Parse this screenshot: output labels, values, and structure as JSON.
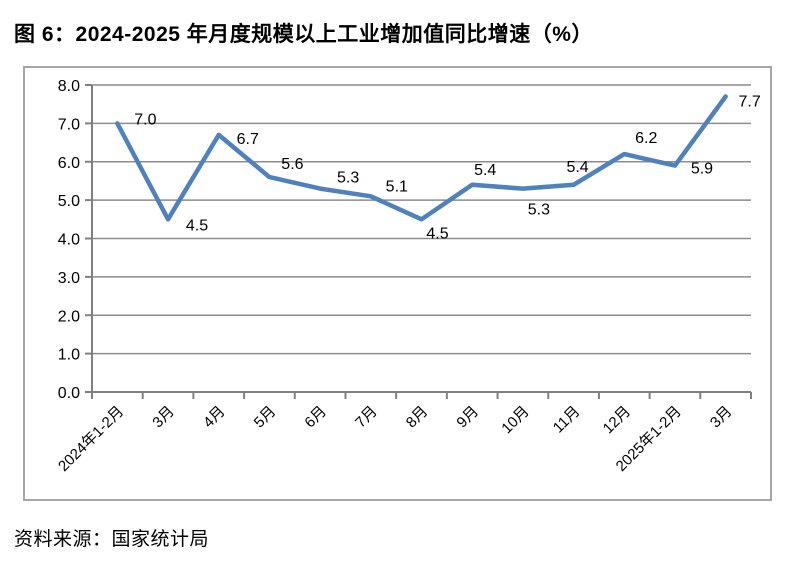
{
  "page": {
    "title": "图 6：2024-2025 年月度规模以上工业增加值同比增速（%）",
    "source_note": "资料来源：国家统计局"
  },
  "chart_data": {
    "type": "line",
    "title": "图 6：2024-2025 年月度规模以上工业增加值同比增速（%）",
    "categories": [
      "2024年1-2月",
      "3月",
      "4月",
      "5月",
      "6月",
      "7月",
      "8月",
      "9月",
      "10月",
      "11月",
      "12月",
      "2025年1-2月",
      "3月"
    ],
    "values": [
      7.0,
      4.5,
      6.7,
      5.6,
      5.3,
      5.1,
      4.5,
      5.4,
      5.3,
      5.4,
      6.2,
      5.9,
      7.7
    ],
    "data_labels": [
      "7.0",
      "4.5",
      "6.7",
      "5.6",
      "5.3",
      "5.1",
      "4.5",
      "5.4",
      "5.3",
      "5.4",
      "6.2",
      "5.9",
      "7.7"
    ],
    "xlabel": "",
    "ylabel": "",
    "ylim": [
      0.0,
      8.0
    ],
    "ytick_labels": [
      "0.0",
      "1.0",
      "2.0",
      "3.0",
      "4.0",
      "5.0",
      "6.0",
      "7.0",
      "8.0"
    ],
    "grid": true,
    "legend_position": "none",
    "colors": {
      "line": "#4F81BD",
      "gridline": "#8C8C8C",
      "axis": "#808080",
      "frame_border": "#A6A6A6",
      "text": "#000000",
      "background": "#FFFFFF"
    }
  }
}
